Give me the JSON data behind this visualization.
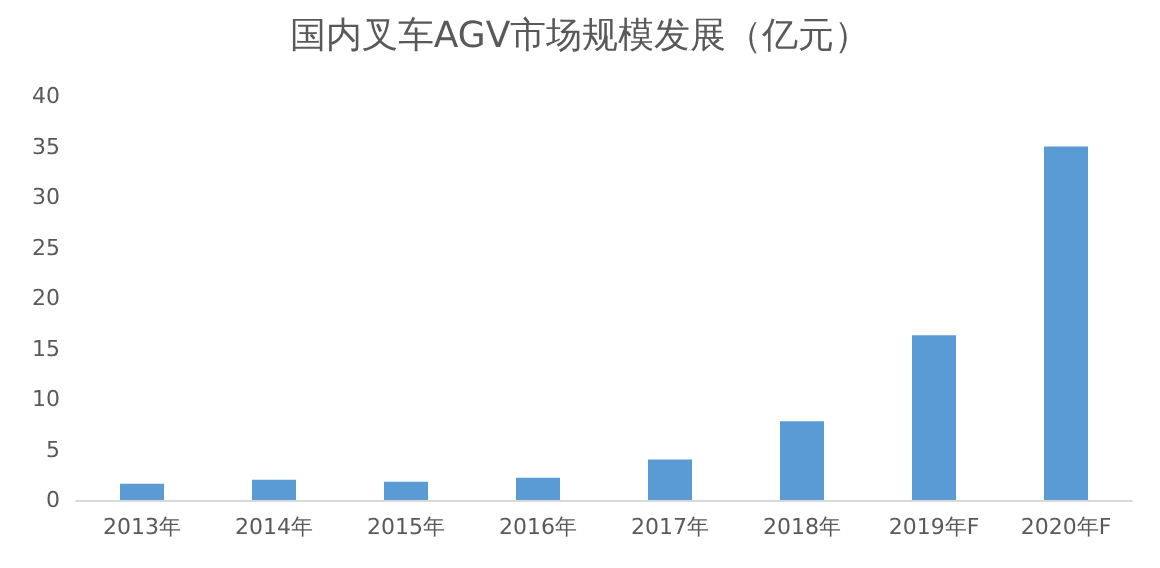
{
  "chart_data": {
    "type": "bar",
    "title": "国内叉车AGV市场规模发展（亿元）",
    "categories": [
      "2013年",
      "2014年",
      "2015年",
      "2016年",
      "2017年",
      "2018年",
      "2019年F",
      "2020年F"
    ],
    "values": [
      1.6,
      2.0,
      1.8,
      2.2,
      4.0,
      7.8,
      16.3,
      35.0
    ],
    "color": "#5b9bd5",
    "ylim": [
      0,
      40
    ],
    "yticks": [
      0,
      5,
      10,
      15,
      20,
      25,
      30,
      35,
      40
    ],
    "grid": false
  }
}
